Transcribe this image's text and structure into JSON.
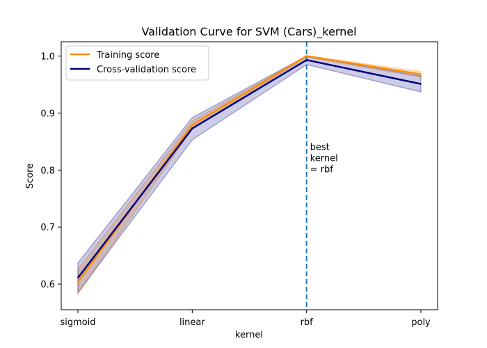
{
  "chart_data": {
    "type": "line",
    "title": "Validation Curve for SVM (Cars)_kernel",
    "xlabel": "kernel",
    "ylabel": "Score",
    "categories": [
      "sigmoid",
      "linear",
      "rbf",
      "poly"
    ],
    "ylim": [
      0.555,
      1.025
    ],
    "yticks": [
      0.6,
      0.7,
      0.8,
      0.9,
      1.0
    ],
    "ytick_labels": [
      "0.6",
      "0.7",
      "0.8",
      "0.9",
      "1.0"
    ],
    "grid": false,
    "legend_position": "top-left",
    "series": [
      {
        "name": "Training score",
        "color": "#ff8c00",
        "values": [
          0.604,
          0.879,
          1.0,
          0.968
        ],
        "band_lower": [
          0.582,
          0.872,
          0.998,
          0.963
        ],
        "band_upper": [
          0.626,
          0.886,
          1.0,
          0.973
        ]
      },
      {
        "name": "Cross-validation score",
        "color": "#000080",
        "values": [
          0.611,
          0.873,
          0.993,
          0.951
        ],
        "band_lower": [
          0.585,
          0.853,
          0.985,
          0.937
        ],
        "band_upper": [
          0.637,
          0.892,
          1.0,
          0.965
        ]
      }
    ],
    "best_marker": {
      "category": "rbf",
      "color": "#1f77b4",
      "label_lines": [
        "best",
        "kernel",
        "= rbf"
      ],
      "label_y": 0.8
    }
  }
}
